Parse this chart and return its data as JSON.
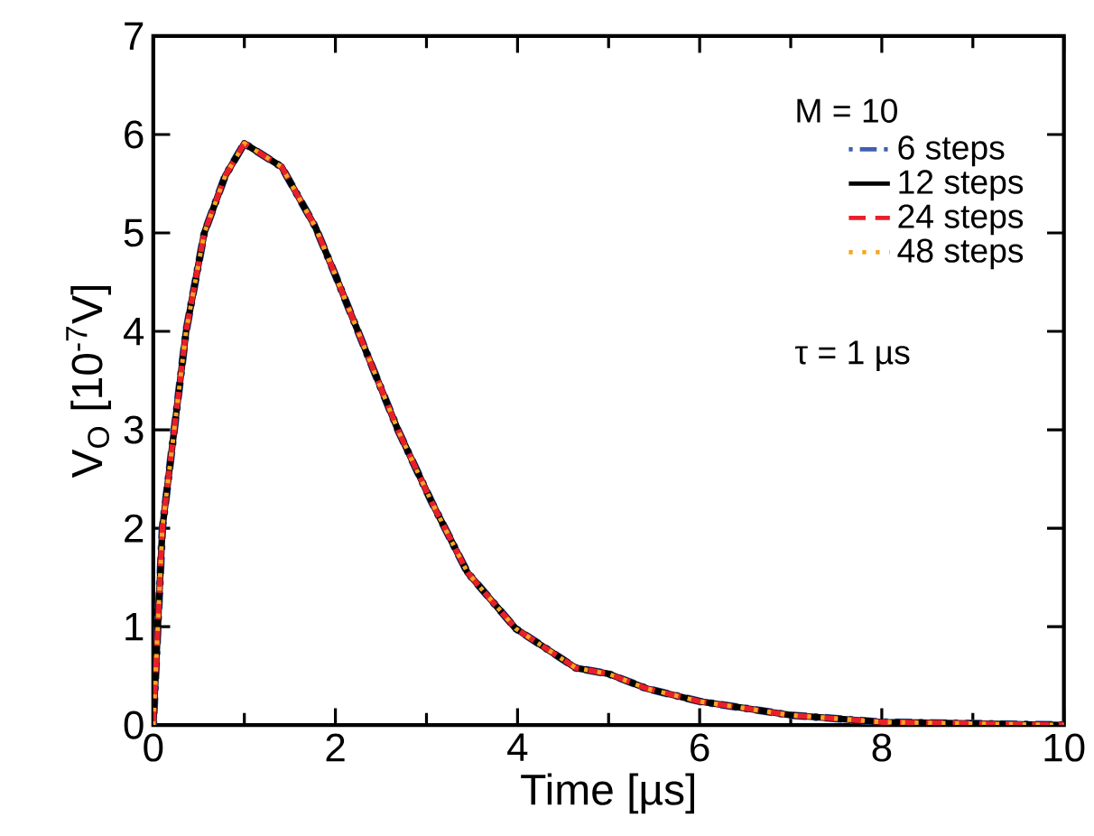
{
  "chart_data": {
    "type": "line",
    "xlabel": "Time [µs]",
    "ylabel": "V$_{O}$ [10$^{-7}$V]",
    "legend_title": "M = 10",
    "annotations": [
      "τ = 1 µs"
    ],
    "x": [
      0,
      0.1,
      0.23,
      0.36,
      0.56,
      0.79,
      1.0,
      1.41,
      1.78,
      2.0,
      2.33,
      2.69,
      3.06,
      3.45,
      3.98,
      4.64,
      5.0,
      5.42,
      6.0,
      7.0,
      8.0,
      10.0
    ],
    "series": [
      {
        "name": "6 steps",
        "color": "#3f5fb0",
        "line_style": "dashdot",
        "values": [
          0,
          2.0,
          3.0,
          4.0,
          5.0,
          5.58,
          5.91,
          5.67,
          5.06,
          4.57,
          3.81,
          2.99,
          2.26,
          1.55,
          0.98,
          0.58,
          0.52,
          0.37,
          0.24,
          0.1,
          0.03,
          0
        ]
      },
      {
        "name": "12 steps",
        "color": "#000000",
        "line_style": "solid",
        "values": [
          0,
          2.0,
          3.0,
          4.0,
          5.0,
          5.58,
          5.91,
          5.67,
          5.06,
          4.57,
          3.81,
          2.99,
          2.26,
          1.55,
          0.98,
          0.58,
          0.52,
          0.37,
          0.24,
          0.1,
          0.03,
          0
        ]
      },
      {
        "name": "24 steps",
        "color": "#e8202a",
        "line_style": "dashed",
        "values": [
          0,
          2.0,
          3.0,
          4.0,
          5.0,
          5.58,
          5.91,
          5.67,
          5.06,
          4.57,
          3.81,
          2.99,
          2.26,
          1.55,
          0.98,
          0.58,
          0.52,
          0.37,
          0.24,
          0.1,
          0.03,
          0
        ]
      },
      {
        "name": "48 steps",
        "color": "#f5a623",
        "line_style": "dotted",
        "values": [
          0,
          2.0,
          3.0,
          4.0,
          5.0,
          5.58,
          5.91,
          5.67,
          5.06,
          4.57,
          3.81,
          2.99,
          2.26,
          1.55,
          0.98,
          0.58,
          0.52,
          0.37,
          0.24,
          0.1,
          0.03,
          0
        ]
      }
    ],
    "xlim": [
      0,
      10
    ],
    "xticks": [
      0,
      2,
      4,
      6,
      8,
      10
    ],
    "ylim": [
      0,
      7
    ],
    "yticks": [
      0,
      1,
      2,
      3,
      4,
      5,
      6,
      7
    ],
    "grid": false,
    "legend": "top right",
    "marker": "none"
  }
}
